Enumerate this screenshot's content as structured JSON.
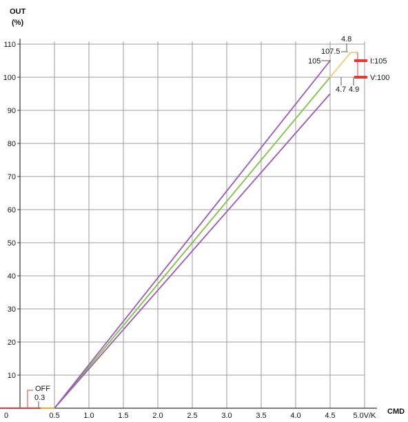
{
  "chart_data": {
    "type": "line",
    "ylabel_line1": "OUT",
    "ylabel_line2": "(%)",
    "xlabel": "CMD",
    "xlim": [
      0,
      5
    ],
    "ylim": [
      0,
      110
    ],
    "grid": true,
    "x_ticks": [
      {
        "value": 0,
        "label": "0"
      },
      {
        "value": 0.5,
        "label": "0.5"
      },
      {
        "value": 1.0,
        "label": "1.0"
      },
      {
        "value": 1.5,
        "label": "1.5"
      },
      {
        "value": 2.0,
        "label": "2.0"
      },
      {
        "value": 2.5,
        "label": "2.5"
      },
      {
        "value": 3.0,
        "label": "3.0"
      },
      {
        "value": 3.5,
        "label": "3.5"
      },
      {
        "value": 4.0,
        "label": "4.0"
      },
      {
        "value": 4.5,
        "label": "4.5"
      },
      {
        "value": 5.0,
        "label": "5.0V/K"
      }
    ],
    "y_ticks": [
      {
        "value": 10,
        "label": "10"
      },
      {
        "value": 20,
        "label": "20"
      },
      {
        "value": 30,
        "label": "30"
      },
      {
        "value": 40,
        "label": "40"
      },
      {
        "value": 50,
        "label": "50"
      },
      {
        "value": 60,
        "label": "60"
      },
      {
        "value": 70,
        "label": "70"
      },
      {
        "value": 80,
        "label": "80"
      },
      {
        "value": 90,
        "label": "90"
      },
      {
        "value": 100,
        "label": "100"
      },
      {
        "value": 110,
        "label": "110"
      }
    ],
    "series": [
      {
        "key": "nominal",
        "color": "#7dc142",
        "points": [
          [
            0.5,
            0
          ],
          [
            4.5,
            100
          ]
        ]
      },
      {
        "key": "upper-tolerance",
        "color": "#9b59b6",
        "points": [
          [
            0.5,
            0
          ],
          [
            4.5,
            105
          ]
        ]
      },
      {
        "key": "lower-tolerance",
        "color": "#9b59b6",
        "points": [
          [
            0.5,
            0
          ],
          [
            4.5,
            95
          ]
        ]
      },
      {
        "key": "off-region",
        "color": "#f5a623",
        "points": [
          [
            0.3,
            0
          ],
          [
            0.5,
            0
          ]
        ]
      },
      {
        "key": "saturation-ramp",
        "color": "#f5c97a",
        "points": [
          [
            4.5,
            100
          ],
          [
            4.8,
            107.5
          ],
          [
            4.9,
            107.5
          ]
        ]
      },
      {
        "key": "zero-baseline",
        "color": "#e53935",
        "points": [
          [
            0,
            0
          ],
          [
            0.3,
            0
          ]
        ]
      }
    ],
    "limit_markers": [
      {
        "label": "I:105",
        "value": 105,
        "color": "#e53935"
      },
      {
        "label": "V:100",
        "value": 100,
        "color": "#e53935"
      }
    ],
    "annotations": {
      "off_label": "OFF",
      "off_value": "0.3",
      "label_105": "105",
      "label_107_5": "107.5",
      "label_4_8": "4.8",
      "label_4_7": "4.7",
      "label_4_9": "4.9"
    }
  }
}
